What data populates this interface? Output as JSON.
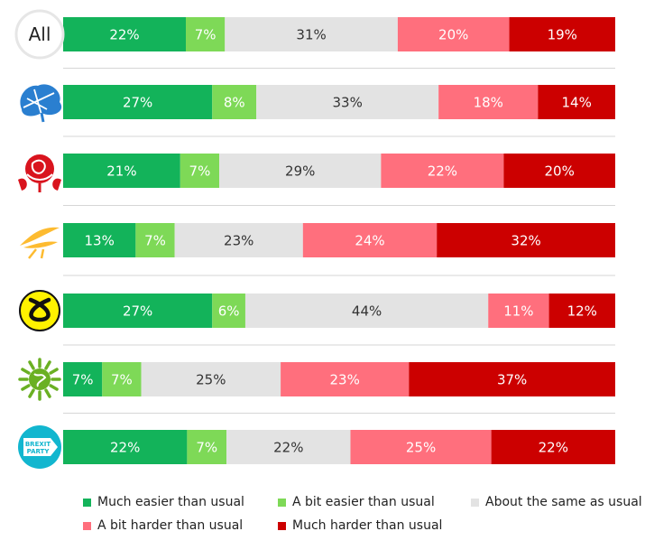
{
  "chart_data": {
    "type": "bar",
    "orientation": "horizontal",
    "stacked": true,
    "percent": true,
    "categories": [
      "All",
      "Conservative",
      "Labour",
      "Liberal Democrats",
      "SNP",
      "Green",
      "Brexit Party"
    ],
    "category_labels": {
      "all": "All",
      "brexit_logo": [
        "BREXIT",
        "PARTY"
      ]
    },
    "series": [
      {
        "name": "Much easier than usual",
        "color": "#13b35a",
        "values": [
          22,
          27,
          21,
          13,
          27,
          7,
          22
        ]
      },
      {
        "name": "A bit easier than usual",
        "color": "#7ed957",
        "values": [
          7,
          8,
          7,
          7,
          6,
          7,
          7
        ]
      },
      {
        "name": "About the same as usual",
        "color": "#e3e3e3",
        "values": [
          31,
          33,
          29,
          23,
          44,
          25,
          22
        ]
      },
      {
        "name": "A bit harder than usual",
        "color": "#ff6f7d",
        "values": [
          20,
          18,
          22,
          24,
          11,
          23,
          25
        ]
      },
      {
        "name": "Much harder than usual",
        "color": "#cc0000",
        "values": [
          19,
          14,
          20,
          32,
          12,
          37,
          22
        ]
      }
    ],
    "grid": false,
    "legend_position": "bottom",
    "label_colors": {
      "light": "#ffffff",
      "dark": "#333333"
    },
    "icons": [
      "all-circle",
      "conservative-tree-icon",
      "labour-rose-icon",
      "libdem-bird-icon",
      "snp-logo-icon",
      "green-party-icon",
      "brexit-party-icon"
    ]
  }
}
